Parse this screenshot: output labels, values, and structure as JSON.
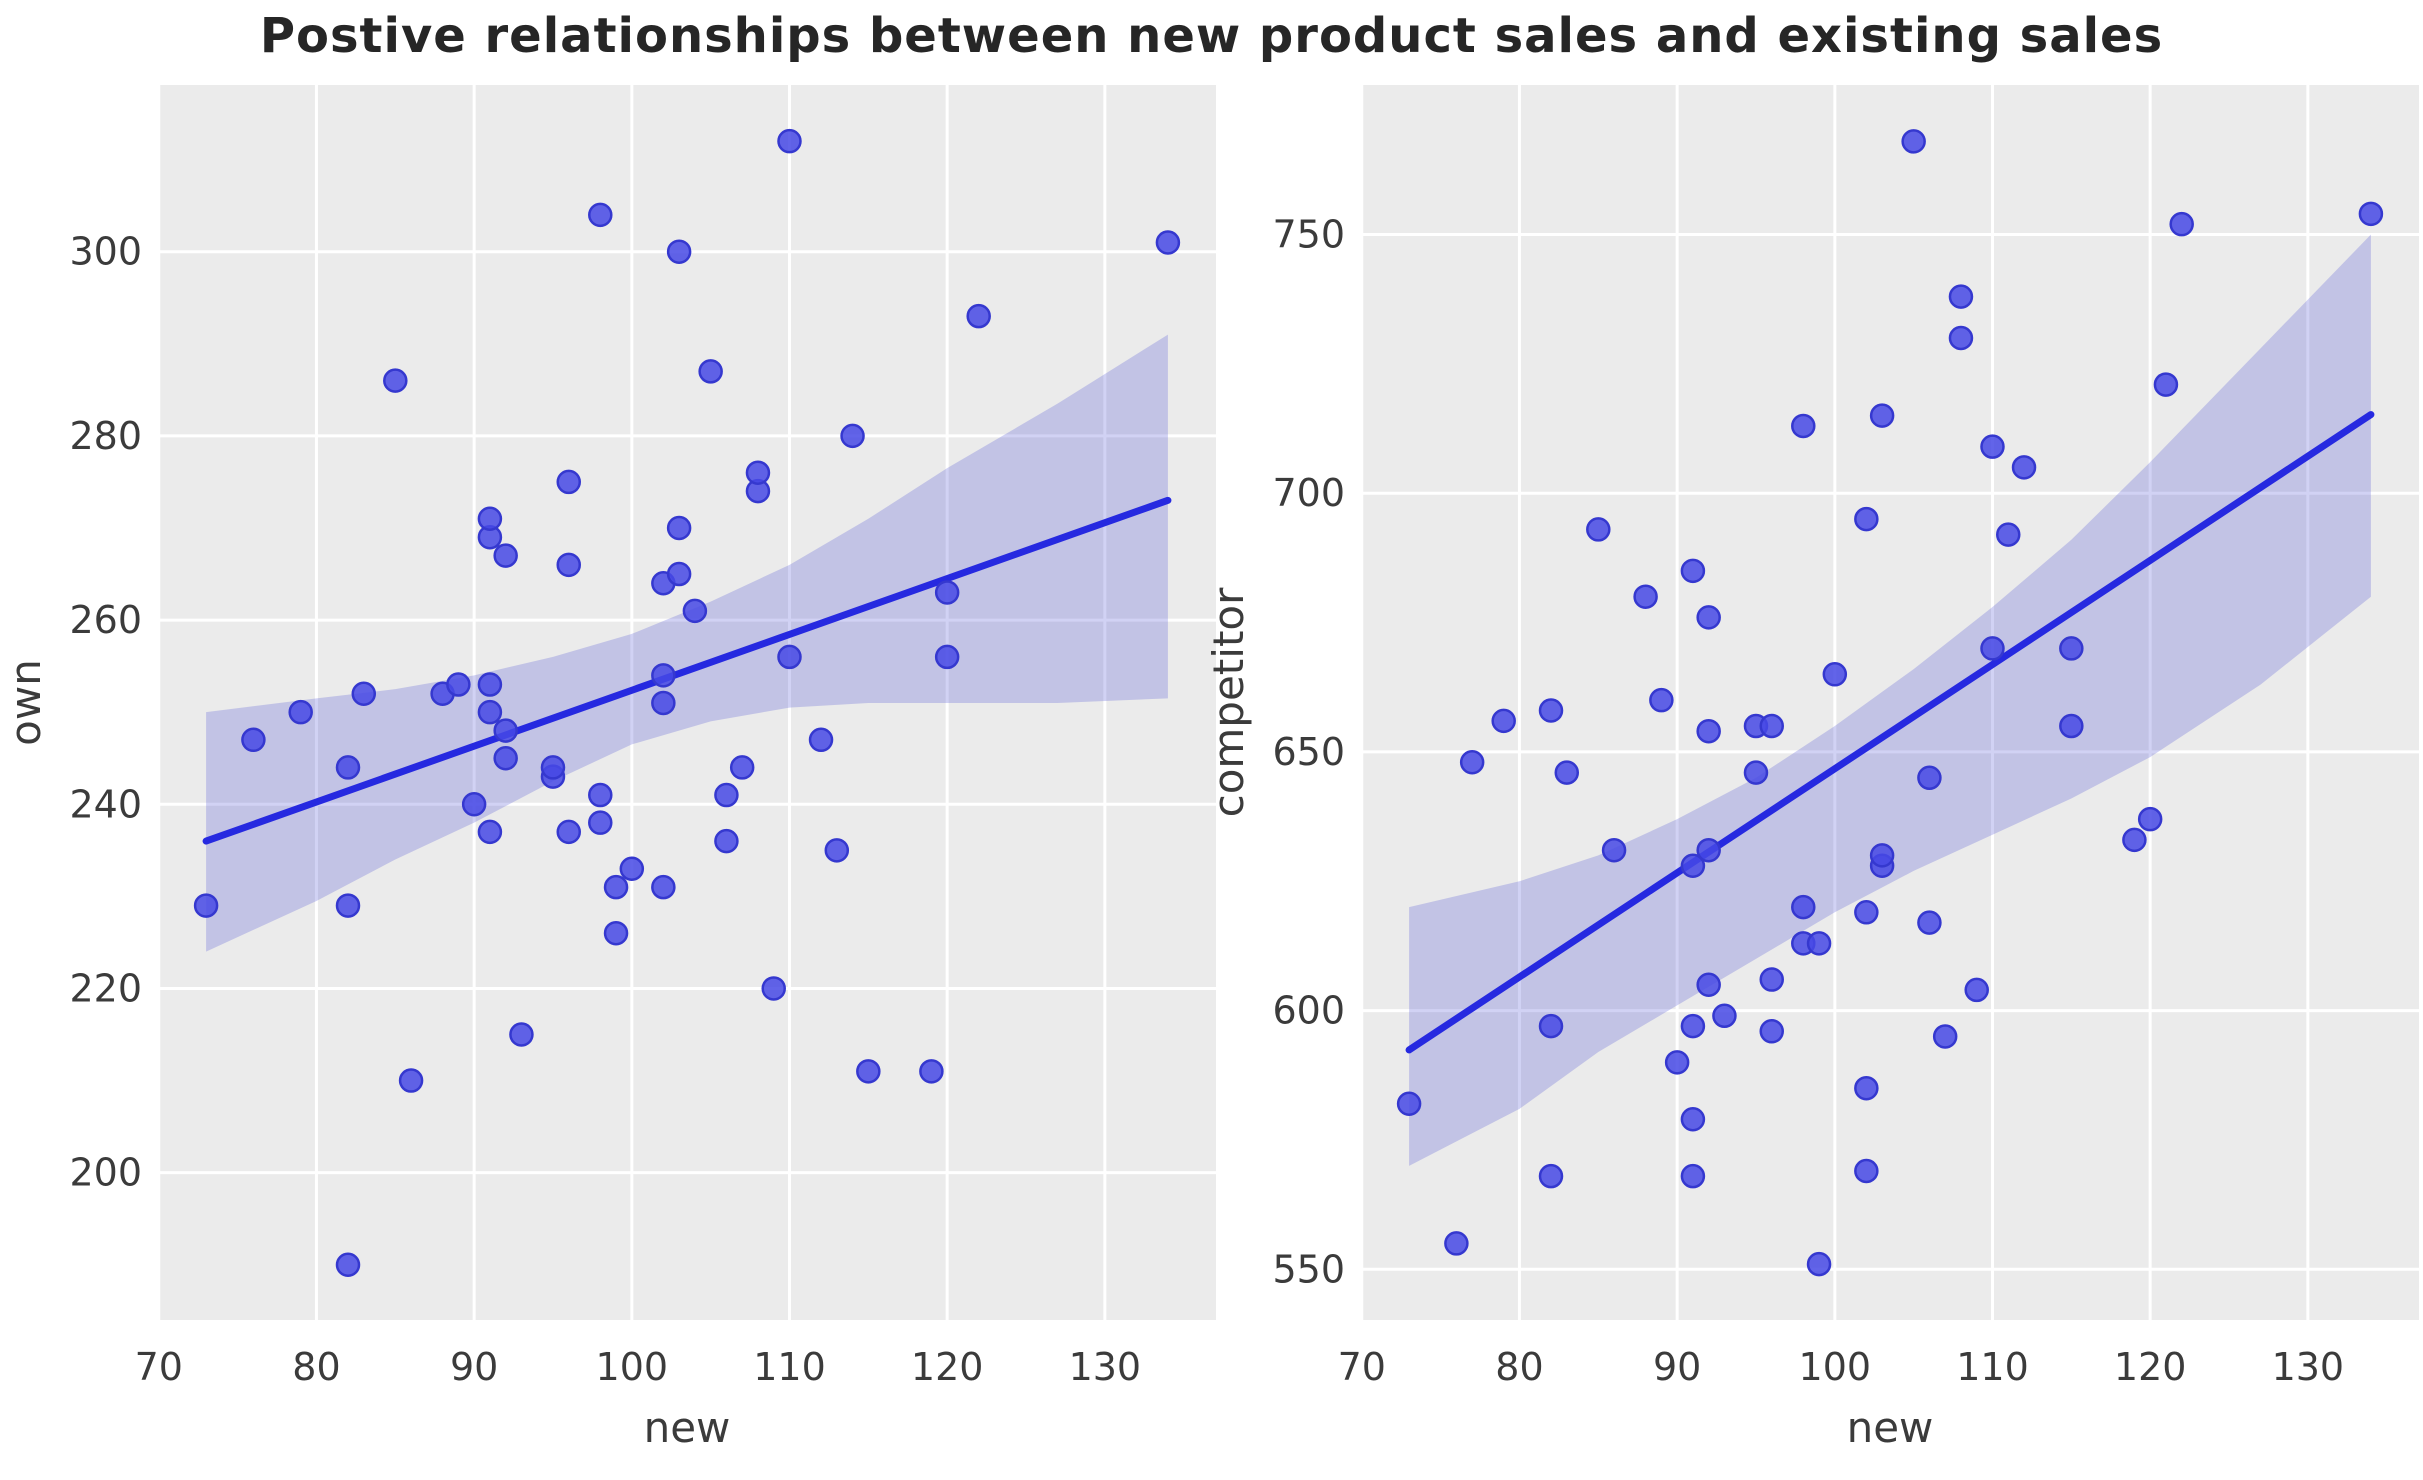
{
  "title": "Postive relationships between new product sales and existing sales",
  "colors": {
    "figure_bg": "#ffffff",
    "axes_bg": "#ebebeb",
    "grid": "#ffffff",
    "point_fill": "#4649e5",
    "point_edge": "#3538cf",
    "line": "#2629e0",
    "band": "#5a5fd8",
    "tick_text": "#3b3b3b",
    "title_text": "#262626"
  },
  "chart_data": [
    {
      "type": "scatter",
      "title": "",
      "xlabel": "new",
      "ylabel": "own",
      "xlim": [
        69.95,
        137.05
      ],
      "ylim": [
        184,
        318.1
      ],
      "xticks": [
        70,
        80,
        90,
        100,
        110,
        120,
        130
      ],
      "yticks": [
        200,
        220,
        240,
        260,
        280,
        300
      ],
      "grid": true,
      "legend": null,
      "points": [
        [
          73,
          229
        ],
        [
          76,
          247
        ],
        [
          79,
          250
        ],
        [
          82,
          190
        ],
        [
          82,
          229
        ],
        [
          82,
          244
        ],
        [
          83,
          252
        ],
        [
          85,
          286
        ],
        [
          86,
          210
        ],
        [
          88,
          252
        ],
        [
          89,
          253
        ],
        [
          90,
          240
        ],
        [
          91,
          237
        ],
        [
          91,
          250
        ],
        [
          91,
          253
        ],
        [
          91,
          269
        ],
        [
          91,
          271
        ],
        [
          92,
          245
        ],
        [
          92,
          248
        ],
        [
          92,
          267
        ],
        [
          93,
          215
        ],
        [
          95,
          243
        ],
        [
          95,
          244
        ],
        [
          96,
          237
        ],
        [
          96,
          266
        ],
        [
          96,
          275
        ],
        [
          98,
          238
        ],
        [
          98,
          241
        ],
        [
          98,
          304
        ],
        [
          99,
          226
        ],
        [
          99,
          231
        ],
        [
          100,
          233
        ],
        [
          102,
          231
        ],
        [
          102,
          251
        ],
        [
          102,
          254
        ],
        [
          102,
          264
        ],
        [
          103,
          265
        ],
        [
          103,
          270
        ],
        [
          103,
          300
        ],
        [
          104,
          261
        ],
        [
          105,
          287
        ],
        [
          106,
          236
        ],
        [
          106,
          241
        ],
        [
          107,
          244
        ],
        [
          108,
          274
        ],
        [
          108,
          276
        ],
        [
          109,
          220
        ],
        [
          110,
          256
        ],
        [
          110,
          312
        ],
        [
          112,
          247
        ],
        [
          113,
          235
        ],
        [
          114,
          280
        ],
        [
          115,
          211
        ],
        [
          119,
          211
        ],
        [
          120,
          256
        ],
        [
          120,
          263
        ],
        [
          122,
          293
        ],
        [
          134,
          301
        ]
      ],
      "regression_line": {
        "x": [
          73,
          134
        ],
        "y": [
          236,
          273
        ]
      },
      "ci_band": {
        "x": [
          73,
          80,
          85,
          90,
          95,
          100,
          105,
          110,
          115,
          120,
          127,
          134
        ],
        "upper": [
          250,
          251.5,
          252.5,
          254,
          256,
          258.5,
          262,
          266,
          271,
          276.5,
          283.5,
          291
        ],
        "lower": [
          224,
          229.5,
          234,
          238,
          242.5,
          246.5,
          249,
          250.5,
          251,
          251,
          251,
          251.5
        ]
      }
    },
    {
      "type": "scatter",
      "title": "",
      "xlabel": "new",
      "ylabel": "competitor",
      "xlim": [
        69.95,
        137.05
      ],
      "ylim": [
        540.2,
        778.9
      ],
      "xticks": [
        70,
        80,
        90,
        100,
        110,
        120,
        130
      ],
      "yticks": [
        550,
        600,
        650,
        700,
        750
      ],
      "grid": true,
      "legend": null,
      "points": [
        [
          73,
          582
        ],
        [
          76,
          555
        ],
        [
          77,
          648
        ],
        [
          79,
          656
        ],
        [
          82,
          568
        ],
        [
          82,
          597
        ],
        [
          82,
          658
        ],
        [
          83,
          646
        ],
        [
          85,
          693
        ],
        [
          86,
          631
        ],
        [
          88,
          680
        ],
        [
          89,
          660
        ],
        [
          90,
          590
        ],
        [
          91,
          568
        ],
        [
          91,
          579
        ],
        [
          91,
          597
        ],
        [
          91,
          628
        ],
        [
          91,
          685
        ],
        [
          92,
          605
        ],
        [
          92,
          631
        ],
        [
          92,
          654
        ],
        [
          92,
          676
        ],
        [
          93,
          599
        ],
        [
          95,
          646
        ],
        [
          95,
          655
        ],
        [
          96,
          596
        ],
        [
          96,
          606
        ],
        [
          96,
          655
        ],
        [
          98,
          613
        ],
        [
          98,
          620
        ],
        [
          98,
          713
        ],
        [
          99,
          551
        ],
        [
          99,
          613
        ],
        [
          100,
          665
        ],
        [
          102,
          569
        ],
        [
          102,
          585
        ],
        [
          102,
          619
        ],
        [
          102,
          695
        ],
        [
          103,
          628
        ],
        [
          103,
          630
        ],
        [
          103,
          715
        ],
        [
          105,
          768
        ],
        [
          106,
          617
        ],
        [
          106,
          645
        ],
        [
          107,
          595
        ],
        [
          108,
          730
        ],
        [
          108,
          738
        ],
        [
          109,
          604
        ],
        [
          110,
          670
        ],
        [
          110,
          709
        ],
        [
          111,
          692
        ],
        [
          112,
          705
        ],
        [
          115,
          655
        ],
        [
          115,
          670
        ],
        [
          119,
          633
        ],
        [
          120,
          637
        ],
        [
          121,
          721
        ],
        [
          122,
          752
        ],
        [
          134,
          754
        ]
      ],
      "regression_line": {
        "x": [
          73,
          134
        ],
        "y": [
          592.4,
          715.2
        ]
      },
      "ci_band": {
        "x": [
          73,
          80,
          85,
          90,
          95,
          100,
          105,
          110,
          115,
          120,
          127,
          134
        ],
        "upper": [
          620,
          625,
          630,
          637,
          645,
          655,
          666,
          678,
          691,
          706,
          728,
          750
        ],
        "lower": [
          570,
          581,
          592,
          601,
          610,
          619,
          627,
          634,
          641,
          649,
          663,
          680
        ]
      }
    }
  ]
}
